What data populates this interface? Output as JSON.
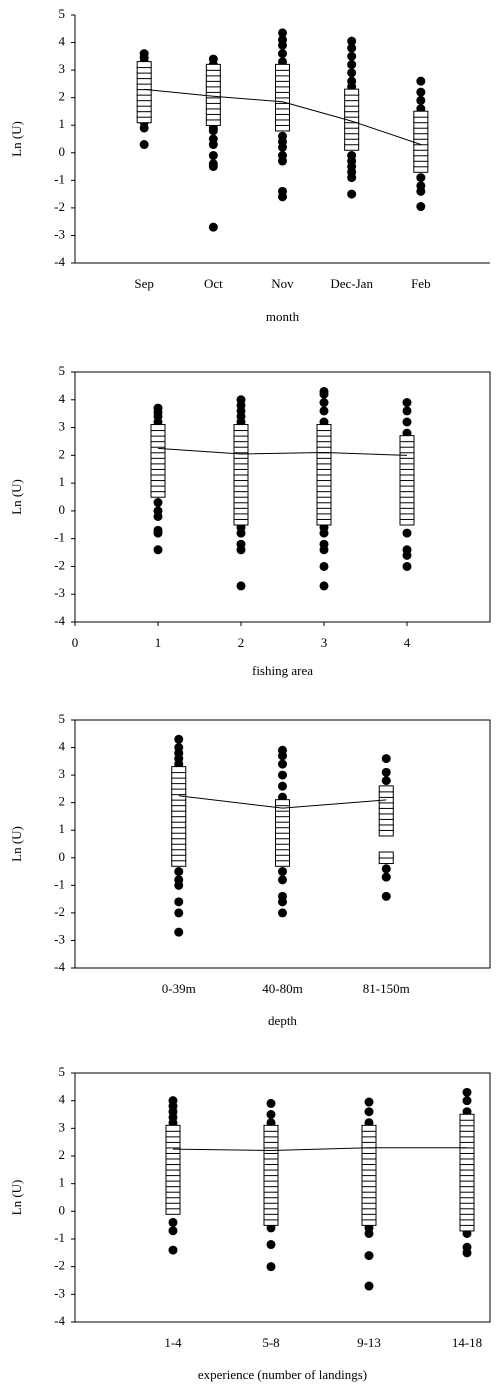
{
  "chart_data": [
    {
      "type": "strip",
      "y_label": "Ln (U)",
      "x_label": "month",
      "frame": false,
      "categories": [
        "Sep",
        "Oct",
        "Nov",
        "Dec-Jan",
        "Feb"
      ],
      "ylim": [
        -4,
        5
      ],
      "yticks": [
        -4,
        -3,
        -2,
        -1,
        0,
        1,
        2,
        3,
        4,
        5
      ],
      "means": [
        2.3,
        2.05,
        1.85,
        1.15,
        0.3
      ],
      "squares": [
        [
          1.2,
          1.4,
          1.6,
          1.8,
          2,
          2.2,
          2.4,
          2.6,
          2.8,
          3,
          3.2
        ],
        [
          1.1,
          1.3,
          1.5,
          1.7,
          1.9,
          2.1,
          2.3,
          2.5,
          2.7,
          2.9,
          3.1
        ],
        [
          0.9,
          1.1,
          1.3,
          1.5,
          1.7,
          1.9,
          2.1,
          2.3,
          2.5,
          2.7,
          2.9,
          3.1
        ],
        [
          0.2,
          0.4,
          0.6,
          0.8,
          1,
          1.2,
          1.4,
          1.6,
          1.8,
          2,
          2.2
        ],
        [
          -0.6,
          -0.4,
          -0.2,
          0,
          0.2,
          0.4,
          0.6,
          0.8,
          1,
          1.2,
          1.4
        ]
      ],
      "circles": [
        [
          0.3,
          0.9,
          1.1,
          3.3,
          3.45,
          3.6
        ],
        [
          -2.7,
          -0.5,
          -0.4,
          -0.1,
          0.3,
          0.5,
          0.8,
          0.9,
          3.2,
          3.4
        ],
        [
          -1.6,
          -1.4,
          -0.3,
          -0.1,
          0.2,
          0.4,
          0.6,
          3.3,
          3.6,
          3.9,
          4.1,
          4.35
        ],
        [
          -1.5,
          -0.9,
          -0.7,
          -0.5,
          -0.3,
          -0.1,
          2.4,
          2.6,
          2.9,
          3.2,
          3.5,
          3.8,
          4.05
        ],
        [
          -1.95,
          -1.4,
          -1.2,
          -0.9,
          1.6,
          1.9,
          2.2,
          2.6
        ]
      ]
    },
    {
      "type": "strip",
      "y_label": "Ln (U)",
      "x_label": "fishing area",
      "frame": true,
      "x": [
        1,
        2,
        3,
        4
      ],
      "xlim": [
        0,
        5
      ],
      "xticks": [
        0,
        1,
        2,
        3,
        4
      ],
      "ylim": [
        -4,
        5
      ],
      "yticks": [
        -4,
        -3,
        -2,
        -1,
        0,
        1,
        2,
        3,
        4,
        5
      ],
      "means": [
        2.25,
        2.05,
        2.1,
        2.0
      ],
      "squares": [
        [
          0.6,
          0.8,
          1,
          1.2,
          1.4,
          1.6,
          1.8,
          2,
          2.2,
          2.4,
          2.6,
          2.8,
          3
        ],
        [
          -0.4,
          -0.2,
          0,
          0.2,
          0.4,
          0.6,
          0.8,
          1,
          1.2,
          1.4,
          1.6,
          1.8,
          2,
          2.2,
          2.4,
          2.6,
          2.8,
          3
        ],
        [
          -0.4,
          -0.2,
          0,
          0.2,
          0.4,
          0.6,
          0.8,
          1,
          1.2,
          1.4,
          1.6,
          1.8,
          2,
          2.2,
          2.4,
          2.6,
          2.8,
          3
        ],
        [
          -0.4,
          -0.2,
          0,
          0.2,
          0.4,
          0.6,
          0.8,
          1,
          1.2,
          1.4,
          1.6,
          1.8,
          2,
          2.2,
          2.4,
          2.6
        ]
      ],
      "circles": [
        [
          -1.4,
          -0.8,
          -0.7,
          -0.2,
          0,
          0.3,
          3.2,
          3.4,
          3.55,
          3.7
        ],
        [
          -2.7,
          -1.4,
          -1.2,
          -0.8,
          -0.6,
          3.2,
          3.4,
          3.6,
          3.8,
          4
        ],
        [
          -2.7,
          -2,
          -1.4,
          -1.2,
          -0.8,
          -0.6,
          3.2,
          3.6,
          3.9,
          4.2,
          4.3
        ],
        [
          -2,
          -1.6,
          -1.4,
          -0.8,
          2.8,
          3.2,
          3.6,
          3.9
        ]
      ]
    },
    {
      "type": "strip",
      "y_label": "Ln (U)",
      "x_label": "depth",
      "frame": true,
      "categories": [
        "0-39m",
        "40-80m",
        "81-150m"
      ],
      "ylim": [
        -4,
        5
      ],
      "yticks": [
        -4,
        -3,
        -2,
        -1,
        0,
        1,
        2,
        3,
        4,
        5
      ],
      "means": [
        2.25,
        1.8,
        2.1
      ],
      "squares": [
        [
          -0.2,
          0,
          0.2,
          0.4,
          0.6,
          0.8,
          1,
          1.2,
          1.4,
          1.6,
          1.8,
          2,
          2.2,
          2.4,
          2.6,
          2.8,
          3,
          3.2
        ],
        [
          -0.2,
          0,
          0.2,
          0.4,
          0.6,
          0.8,
          1,
          1.2,
          1.4,
          1.6,
          1.8,
          2
        ],
        [
          -0.1,
          0.1,
          0.9,
          1.1,
          1.3,
          1.5,
          1.7,
          1.9,
          2.1,
          2.3,
          2.5
        ]
      ],
      "circles": [
        [
          -2.7,
          -2,
          -1.6,
          -1,
          -0.8,
          -0.5,
          3.4,
          3.6,
          3.8,
          4,
          4.3
        ],
        [
          -2,
          -1.6,
          -1.4,
          -0.8,
          -0.5,
          2.2,
          2.6,
          3,
          3.4,
          3.7,
          3.9
        ],
        [
          -1.4,
          -0.7,
          -0.4,
          2.8,
          3.1,
          3.6
        ]
      ]
    },
    {
      "type": "strip",
      "y_label": "Ln (U)",
      "x_label": "experience (number of landings)",
      "frame": true,
      "categories": [
        "1-4",
        "5-8",
        "9-13",
        "14-18"
      ],
      "ylim": [
        -4,
        5
      ],
      "yticks": [
        -4,
        -3,
        -2,
        -1,
        0,
        1,
        2,
        3,
        4,
        5
      ],
      "means": [
        2.25,
        2.2,
        2.3,
        2.3
      ],
      "squares": [
        [
          0,
          0.2,
          0.4,
          0.6,
          0.8,
          1,
          1.2,
          1.4,
          1.6,
          1.8,
          2,
          2.2,
          2.4,
          2.6,
          2.8,
          3
        ],
        [
          -0.4,
          -0.2,
          0,
          0.2,
          0.4,
          0.6,
          0.8,
          1,
          1.2,
          1.4,
          1.6,
          1.8,
          2,
          2.2,
          2.4,
          2.6,
          2.8,
          3
        ],
        [
          -0.4,
          -0.2,
          0,
          0.2,
          0.4,
          0.6,
          0.8,
          1,
          1.2,
          1.4,
          1.6,
          1.8,
          2,
          2.2,
          2.4,
          2.6,
          2.8,
          3
        ],
        [
          -0.6,
          -0.4,
          -0.2,
          0,
          0.2,
          0.4,
          0.6,
          0.8,
          1,
          1.2,
          1.4,
          1.6,
          1.8,
          2,
          2.2,
          2.4,
          2.6,
          2.8,
          3,
          3.2,
          3.4
        ]
      ],
      "circles": [
        [
          -1.4,
          -0.7,
          -0.4,
          3.2,
          3.4,
          3.6,
          3.8,
          4
        ],
        [
          -2,
          -1.2,
          -0.6,
          3.2,
          3.5,
          3.9
        ],
        [
          -2.7,
          -1.6,
          -0.8,
          -0.6,
          3.2,
          3.6,
          3.95
        ],
        [
          -1.5,
          -1.3,
          -0.8,
          3.6,
          4,
          4.3
        ]
      ]
    }
  ]
}
